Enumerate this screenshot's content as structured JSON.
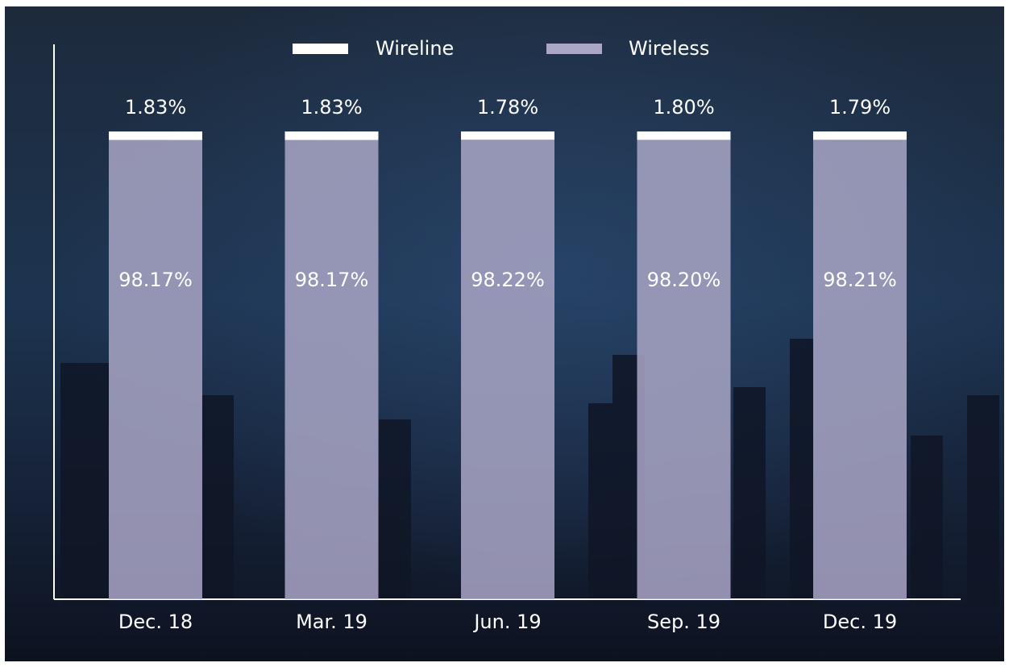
{
  "chart_data": {
    "type": "stacked_bar",
    "categories": [
      "Dec. 18",
      "Mar. 19",
      "Jun. 19",
      "Sep. 19",
      "Dec. 19"
    ],
    "series": [
      {
        "name": "Wireless",
        "color": "#a9a6c6",
        "values": [
          98.17,
          98.17,
          98.22,
          98.2,
          98.21
        ],
        "value_labels": [
          "98.17%",
          "98.17%",
          "98.22%",
          "98.20%",
          "98.21%"
        ]
      },
      {
        "name": "Wireline",
        "color": "#ffffff",
        "values": [
          1.83,
          1.83,
          1.78,
          1.8,
          1.79
        ],
        "value_labels": [
          "1.83%",
          "1.83%",
          "1.78%",
          "1.80%",
          "1.79%"
        ]
      }
    ],
    "ylim": [
      0,
      100
    ]
  }
}
